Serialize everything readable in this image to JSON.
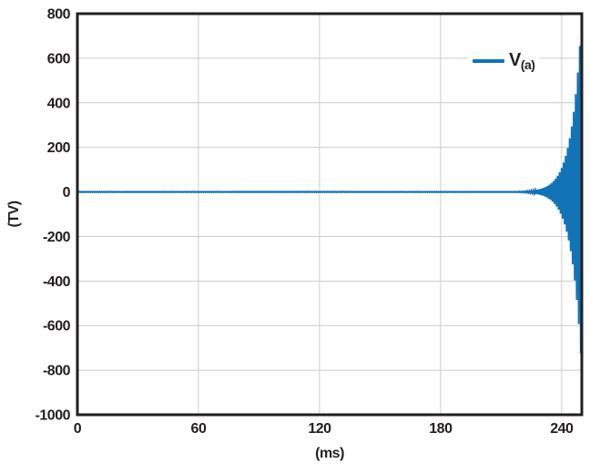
{
  "colors": {
    "accent": "#1173b6",
    "axis_text": "#231f20",
    "border": "#231f20",
    "grid": "#cccccc",
    "background": "#ffffff"
  },
  "chart_data": {
    "type": "line",
    "title": "",
    "xlabel": "(ms)",
    "ylabel": "(TV)",
    "xlim": [
      0,
      250
    ],
    "ylim": [
      -1000,
      800
    ],
    "x_ticks": [
      0,
      60,
      120,
      180,
      240
    ],
    "x_tick_labels": [
      "0",
      "60",
      "120",
      "180",
      "240"
    ],
    "y_ticks": [
      800,
      600,
      400,
      200,
      0,
      -200,
      -400,
      -600,
      -800,
      -1000
    ],
    "y_tick_labels": [
      "800",
      "600",
      "400",
      "200",
      "0",
      "-200",
      "-400",
      "-600",
      "-800",
      "-1000"
    ],
    "grid": true,
    "legend": {
      "position": "upper right",
      "entries": [
        {
          "label_main": "V",
          "label_sub": "(a)",
          "color": "#1173b6"
        }
      ]
    },
    "series": [
      {
        "name": "V(a)",
        "color": "#1173b6",
        "description": "sinusoidal oscillation with exponentially growing amplitude; flat near 0 TV until ~215 ms then grows to ~±800 TV at 250 ms",
        "period_ms": 1.0,
        "envelope": {
          "model": "exponential",
          "baseline_tv": 1.2,
          "end_ms": 250,
          "end_amplitude_tv": 800,
          "growth_rate_per_ms": 0.2
        }
      }
    ]
  }
}
